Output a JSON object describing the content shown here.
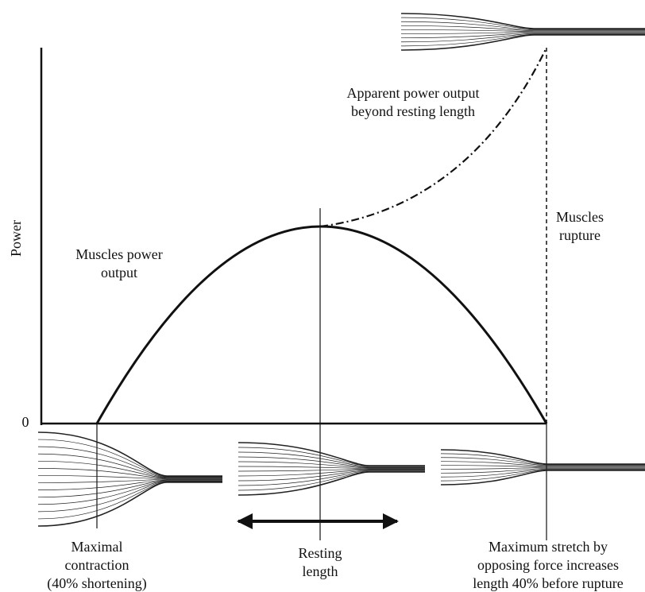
{
  "axis": {
    "y_label": "Power",
    "origin_label": "0"
  },
  "annotations": {
    "muscles_power_output": [
      "Muscles power",
      "output"
    ],
    "apparent_power": [
      "Apparent power output",
      "beyond resting length"
    ],
    "muscles_rupture": [
      "Muscles",
      "rupture"
    ]
  },
  "states": {
    "maximal_contraction": [
      "Maximal",
      "contraction",
      "(40% shortening)"
    ],
    "resting_length": [
      "Resting",
      "length"
    ],
    "maximum_stretch": [
      "Maximum stretch by",
      "opposing force increases",
      "length 40% before rupture"
    ]
  }
}
